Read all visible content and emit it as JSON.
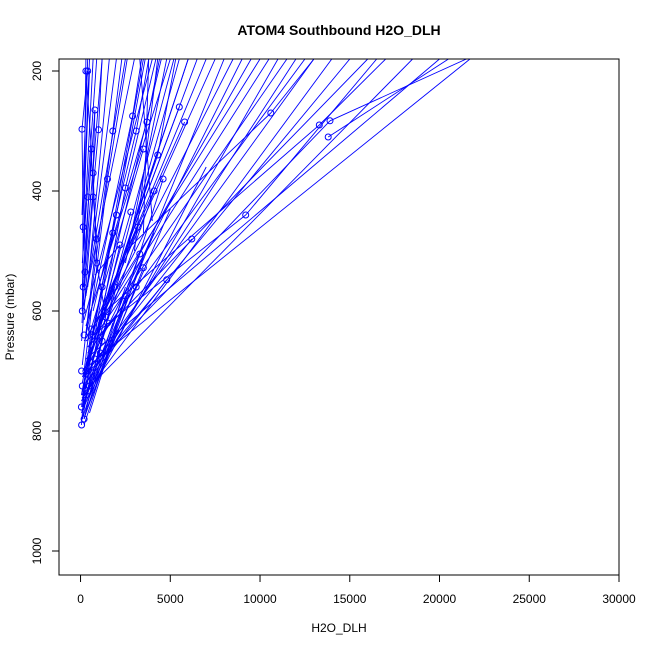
{
  "chart_data": {
    "type": "line",
    "title": "ATOM4 Southbound H2O_DLH",
    "xlabel": "H2O_DLH",
    "ylabel": "Pressure (mbar)",
    "xlim": [
      -1200,
      30000
    ],
    "ylim": [
      1040,
      180
    ],
    "y_reversed": true,
    "x_ticks": [
      0,
      5000,
      10000,
      15000,
      20000,
      25000,
      30000
    ],
    "y_ticks": [
      200,
      400,
      600,
      800,
      1000
    ],
    "series_color": "#0000ff",
    "marker": "open-circle",
    "points": [
      [
        400,
        200
      ],
      [
        80,
        297
      ],
      [
        150,
        460
      ],
      [
        300,
        200
      ],
      [
        600,
        330
      ],
      [
        700,
        410
      ],
      [
        900,
        480
      ],
      [
        100,
        600
      ],
      [
        60,
        700
      ],
      [
        50,
        760
      ],
      [
        60,
        790
      ],
      [
        200,
        780
      ],
      [
        1000,
        298
      ],
      [
        800,
        265
      ],
      [
        1500,
        380
      ],
      [
        1800,
        300
      ],
      [
        2000,
        440
      ],
      [
        1200,
        560
      ],
      [
        600,
        630
      ],
      [
        300,
        700
      ],
      [
        1800,
        470
      ],
      [
        2500,
        395
      ],
      [
        3100,
        300
      ],
      [
        3500,
        330
      ],
      [
        2900,
        275
      ],
      [
        3700,
        285
      ],
      [
        4300,
        340
      ],
      [
        4100,
        400
      ],
      [
        2800,
        435
      ],
      [
        3300,
        505
      ],
      [
        3500,
        528
      ],
      [
        2500,
        575
      ],
      [
        1500,
        620
      ],
      [
        800,
        680
      ],
      [
        300,
        740
      ],
      [
        4800,
        548
      ],
      [
        5800,
        285
      ],
      [
        5500,
        260
      ],
      [
        3200,
        460
      ],
      [
        1900,
        560
      ],
      [
        1100,
        670
      ],
      [
        500,
        725
      ],
      [
        10600,
        270
      ],
      [
        13300,
        290
      ],
      [
        13900,
        283
      ],
      [
        13800,
        310
      ],
      [
        9200,
        440
      ],
      [
        6200,
        480
      ],
      [
        3100,
        560
      ],
      [
        1200,
        650
      ],
      [
        400,
        410
      ],
      [
        250,
        535
      ],
      [
        150,
        560
      ],
      [
        2200,
        490
      ],
      [
        4600,
        380
      ],
      [
        700,
        370
      ],
      [
        900,
        520
      ],
      [
        1400,
        610
      ],
      [
        200,
        640
      ],
      [
        100,
        725
      ]
    ],
    "segments": [
      [
        [
          300,
          720
        ],
        [
          12000,
          180
        ]
      ],
      [
        [
          300,
          700
        ],
        [
          6000,
          180
        ]
      ],
      [
        [
          500,
          690
        ],
        [
          21700,
          180
        ]
      ],
      [
        [
          300,
          680
        ],
        [
          20000,
          180
        ]
      ],
      [
        [
          400,
          660
        ],
        [
          16000,
          180
        ]
      ],
      [
        [
          200,
          650
        ],
        [
          10000,
          180
        ]
      ],
      [
        [
          600,
          640
        ],
        [
          7500,
          180
        ]
      ],
      [
        [
          300,
          625
        ],
        [
          5000,
          180
        ]
      ],
      [
        [
          200,
          615
        ],
        [
          4000,
          180
        ]
      ],
      [
        [
          100,
          600
        ],
        [
          3000,
          180
        ]
      ],
      [
        [
          200,
          590
        ],
        [
          2500,
          180
        ]
      ],
      [
        [
          300,
          575
        ],
        [
          2000,
          180
        ]
      ],
      [
        [
          400,
          560
        ],
        [
          1600,
          180
        ]
      ],
      [
        [
          200,
          545
        ],
        [
          1200,
          180
        ]
      ],
      [
        [
          100,
          520
        ],
        [
          900,
          180
        ]
      ],
      [
        [
          150,
          500
        ],
        [
          700,
          180
        ]
      ],
      [
        [
          100,
          470
        ],
        [
          500,
          180
        ]
      ],
      [
        [
          80,
          440
        ],
        [
          400,
          180
        ]
      ],
      [
        [
          200,
          420
        ],
        [
          300,
          180
        ]
      ],
      [
        [
          60,
          740
        ],
        [
          18500,
          180
        ]
      ],
      [
        [
          80,
          745
        ],
        [
          14000,
          180
        ]
      ],
      [
        [
          50,
          750
        ],
        [
          11000,
          180
        ]
      ],
      [
        [
          100,
          710
        ],
        [
          9000,
          180
        ]
      ],
      [
        [
          80,
          760
        ],
        [
          8000,
          180
        ]
      ],
      [
        [
          60,
          770
        ],
        [
          5500,
          180
        ]
      ],
      [
        [
          100,
          735
        ],
        [
          4500,
          180
        ]
      ],
      [
        [
          150,
          730
        ],
        [
          3500,
          180
        ]
      ],
      [
        [
          200,
          715
        ],
        [
          15000,
          180
        ]
      ],
      [
        [
          300,
          705
        ],
        [
          13000,
          180
        ]
      ],
      [
        [
          400,
          670
        ],
        [
          12500,
          180
        ]
      ],
      [
        [
          500,
          655
        ],
        [
          11500,
          180
        ]
      ],
      [
        [
          700,
          640
        ],
        [
          10500,
          180
        ]
      ],
      [
        [
          900,
          630
        ],
        [
          9500,
          180
        ]
      ],
      [
        [
          1000,
          620
        ],
        [
          8500,
          180
        ]
      ],
      [
        [
          1200,
          600
        ],
        [
          7000,
          180
        ]
      ],
      [
        [
          1500,
          580
        ],
        [
          6500,
          180
        ]
      ],
      [
        [
          1800,
          560
        ],
        [
          6000,
          180
        ]
      ],
      [
        [
          2000,
          540
        ],
        [
          5200,
          180
        ]
      ],
      [
        [
          2500,
          520
        ],
        [
          4800,
          180
        ]
      ],
      [
        [
          3000,
          500
        ],
        [
          4300,
          180
        ]
      ],
      [
        [
          3500,
          470
        ],
        [
          3800,
          180
        ]
      ],
      [
        [
          4000,
          450
        ],
        [
          3300,
          180
        ]
      ],
      [
        [
          10600,
          270
        ],
        [
          13000,
          180
        ]
      ],
      [
        [
          13300,
          290
        ],
        [
          17000,
          180
        ]
      ],
      [
        [
          13900,
          283
        ],
        [
          21500,
          180
        ]
      ],
      [
        [
          13800,
          310
        ],
        [
          20500,
          180
        ]
      ],
      [
        [
          9200,
          440
        ],
        [
          16500,
          180
        ]
      ],
      [
        [
          9200,
          440
        ],
        [
          300,
          650
        ]
      ],
      [
        [
          13300,
          290
        ],
        [
          1000,
          610
        ]
      ],
      [
        [
          13900,
          283
        ],
        [
          500,
          700
        ]
      ],
      [
        [
          10600,
          270
        ],
        [
          2500,
          500
        ]
      ],
      [
        [
          6200,
          480
        ],
        [
          400,
          700
        ]
      ],
      [
        [
          4800,
          548
        ],
        [
          300,
          720
        ]
      ],
      [
        [
          5800,
          285
        ],
        [
          800,
          620
        ]
      ],
      [
        [
          5500,
          260
        ],
        [
          1500,
          580
        ]
      ],
      [
        [
          3700,
          285
        ],
        [
          1000,
          560
        ]
      ],
      [
        [
          3500,
          330
        ],
        [
          400,
          650
        ]
      ],
      [
        [
          3100,
          300
        ],
        [
          700,
          600
        ]
      ],
      [
        [
          2900,
          275
        ],
        [
          300,
          640
        ]
      ],
      [
        [
          4300,
          340
        ],
        [
          200,
          700
        ]
      ],
      [
        [
          4100,
          400
        ],
        [
          600,
          690
        ]
      ],
      [
        [
          2800,
          435
        ],
        [
          200,
          710
        ]
      ],
      [
        [
          3300,
          505
        ],
        [
          300,
          740
        ]
      ],
      [
        [
          3500,
          528
        ],
        [
          400,
          760
        ]
      ],
      [
        [
          2500,
          575
        ],
        [
          200,
          790
        ]
      ],
      [
        [
          1500,
          620
        ],
        [
          100,
          760
        ]
      ],
      [
        [
          2200,
          490
        ],
        [
          300,
          730
        ]
      ],
      [
        [
          4600,
          380
        ],
        [
          500,
          770
        ]
      ],
      [
        [
          1800,
          470
        ],
        [
          150,
          750
        ]
      ],
      [
        [
          2500,
          395
        ],
        [
          100,
          780
        ]
      ],
      [
        [
          1500,
          380
        ],
        [
          200,
          700
        ]
      ],
      [
        [
          2000,
          440
        ],
        [
          100,
          720
        ]
      ],
      [
        [
          1800,
          300
        ],
        [
          300,
          640
        ]
      ],
      [
        [
          1000,
          298
        ],
        [
          100,
          600
        ]
      ],
      [
        [
          800,
          265
        ],
        [
          100,
          560
        ]
      ],
      [
        [
          600,
          330
        ],
        [
          80,
          620
        ]
      ],
      [
        [
          700,
          410
        ],
        [
          60,
          650
        ]
      ],
      [
        [
          900,
          480
        ],
        [
          100,
          690
        ]
      ],
      [
        [
          1200,
          560
        ],
        [
          50,
          740
        ]
      ],
      [
        [
          600,
          630
        ],
        [
          60,
          760
        ]
      ],
      [
        [
          300,
          700
        ],
        [
          50,
          790
        ]
      ],
      [
        [
          1900,
          560
        ],
        [
          200,
          780
        ]
      ],
      [
        [
          1100,
          670
        ],
        [
          60,
          770
        ]
      ],
      [
        [
          1400,
          610
        ],
        [
          100,
          740
        ]
      ],
      [
        [
          2200,
          490
        ],
        [
          800,
          540
        ]
      ],
      [
        [
          3100,
          560
        ],
        [
          1200,
          640
        ]
      ],
      [
        [
          3200,
          460
        ],
        [
          1100,
          620
        ]
      ],
      [
        [
          400,
          200
        ],
        [
          80,
          297
        ]
      ],
      [
        [
          80,
          297
        ],
        [
          150,
          460
        ]
      ],
      [
        [
          150,
          460
        ],
        [
          100,
          600
        ]
      ],
      [
        [
          300,
          200
        ],
        [
          600,
          330
        ]
      ],
      [
        [
          600,
          330
        ],
        [
          700,
          410
        ]
      ],
      [
        [
          700,
          410
        ],
        [
          900,
          480
        ]
      ],
      [
        [
          800,
          265
        ],
        [
          700,
          370
        ]
      ],
      [
        [
          700,
          370
        ],
        [
          900,
          520
        ]
      ],
      [
        [
          900,
          520
        ],
        [
          1400,
          610
        ]
      ],
      [
        [
          500,
          200
        ],
        [
          200,
          420
        ]
      ],
      [
        [
          200,
          420
        ],
        [
          250,
          535
        ]
      ],
      [
        [
          250,
          535
        ],
        [
          150,
          560
        ]
      ],
      [
        [
          1000,
          298
        ],
        [
          1200,
          180
        ]
      ],
      [
        [
          1800,
          300
        ],
        [
          2300,
          180
        ]
      ],
      [
        [
          2900,
          275
        ],
        [
          3400,
          180
        ]
      ],
      [
        [
          3100,
          300
        ],
        [
          3800,
          180
        ]
      ],
      [
        [
          3700,
          285
        ],
        [
          4400,
          180
        ]
      ],
      [
        [
          4300,
          340
        ],
        [
          5300,
          180
        ]
      ],
      [
        [
          1500,
          380
        ],
        [
          2600,
          180
        ]
      ],
      [
        [
          2000,
          440
        ],
        [
          3600,
          180
        ]
      ],
      [
        [
          2500,
          395
        ],
        [
          4200,
          180
        ]
      ],
      [
        [
          100,
          780
        ],
        [
          1800,
          620
        ]
      ],
      [
        [
          200,
          780
        ],
        [
          2500,
          560
        ]
      ],
      [
        [
          300,
          770
        ],
        [
          3500,
          510
        ]
      ],
      [
        [
          200,
          760
        ],
        [
          4100,
          470
        ]
      ],
      [
        [
          400,
          750
        ],
        [
          5000,
          430
        ]
      ],
      [
        [
          500,
          740
        ],
        [
          7000,
          360
        ]
      ]
    ]
  }
}
